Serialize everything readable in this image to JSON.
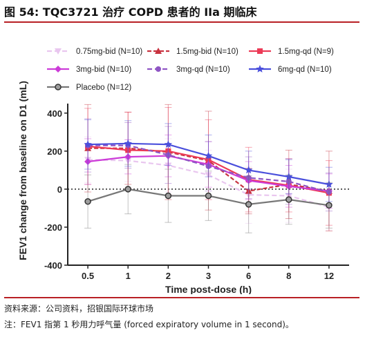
{
  "figure": {
    "title": "图 54: TQC3721 治疗 COPD 患者的 IIa 期临床",
    "source": "资料来源：公司资料，招银国际环球市场",
    "note": "注：FEV1 指第 1 秒用力呼气量 (forced expiratory volume in 1 second)。"
  },
  "chart_data": {
    "type": "line",
    "xlabel": "Time post-dose (h)",
    "ylabel": "FEV1 change from baseline on D1 (mL)",
    "categories": [
      "0.5",
      "1",
      "2",
      "3",
      "6",
      "8",
      "12"
    ],
    "ylim": [
      -400,
      450
    ],
    "yticks": [
      -400,
      -200,
      0,
      200,
      400
    ],
    "reference_line": 0,
    "legend_position": "top",
    "series": [
      {
        "name": "0.75mg-bid (N=10)",
        "color": "#e9c6ef",
        "dash": "7,4",
        "marker": "triangle-down",
        "values": [
          155,
          150,
          125,
          75,
          -30,
          -35,
          -95
        ],
        "err": [
          120,
          110,
          140,
          130,
          150,
          140,
          120
        ]
      },
      {
        "name": "1.5mg-bid (N=10)",
        "color": "#c8323f",
        "dash": "6,3",
        "marker": "triangle-up",
        "values": [
          215,
          215,
          195,
          150,
          -10,
          25,
          -10
        ],
        "err": [
          230,
          190,
          250,
          260,
          120,
          180,
          210
        ]
      },
      {
        "name": "1.5mg-qd (N=9)",
        "color": "#ec3a56",
        "dash": "",
        "marker": "square",
        "values": [
          225,
          205,
          200,
          155,
          50,
          20,
          -20
        ],
        "err": [
          200,
          200,
          230,
          210,
          170,
          140,
          170
        ]
      },
      {
        "name": "3mg-bid (N=10)",
        "color": "#cc3bd8",
        "dash": "",
        "marker": "diamond",
        "values": [
          145,
          170,
          175,
          130,
          45,
          15,
          -10
        ],
        "err": [
          120,
          90,
          110,
          120,
          100,
          110,
          90
        ]
      },
      {
        "name": "3mg-qd (N=10)",
        "color": "#8f55c4",
        "dash": "7,4",
        "marker": "circle",
        "values": [
          230,
          230,
          180,
          120,
          60,
          40,
          -15
        ],
        "err": [
          140,
          120,
          150,
          130,
          110,
          120,
          100
        ]
      },
      {
        "name": "6mg-qd (N=10)",
        "color": "#4a4fdc",
        "dash": "",
        "marker": "star",
        "values": [
          235,
          240,
          235,
          175,
          100,
          65,
          25
        ],
        "err": [
          130,
          120,
          110,
          110,
          100,
          90,
          90
        ]
      },
      {
        "name": "Placebo (N=12)",
        "color": "#777777",
        "dash": "",
        "marker": "circle-open",
        "values": [
          -65,
          0,
          -35,
          -35,
          -80,
          -55,
          -85
        ],
        "err": [
          140,
          130,
          140,
          130,
          150,
          130,
          120
        ]
      }
    ]
  }
}
